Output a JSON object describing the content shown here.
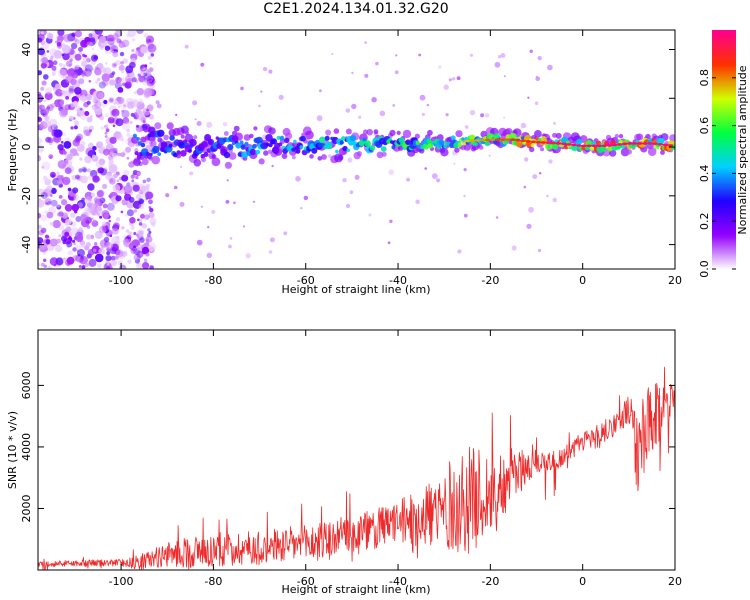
{
  "title": "C2E1.2024.134.01.32.G20",
  "chart_data": [
    {
      "type": "heatmap",
      "xlabel": "Height of straight line (km)",
      "ylabel": "Frequency (Hz)",
      "xlim": [
        -118,
        20
      ],
      "ylim": [
        -50,
        48
      ],
      "xticks": [
        -100,
        -80,
        -60,
        -40,
        -20,
        0,
        20
      ],
      "yticks": [
        -40,
        -20,
        0,
        20,
        40
      ],
      "colorbar": {
        "label": "Normalized spectral amplitude",
        "range": [
          0.0,
          1.0
        ],
        "ticks": [
          0.0,
          0.2,
          0.4,
          0.6,
          0.8
        ],
        "colormap": [
          "#ffffff",
          "#9400ff",
          "#2200ff",
          "#00d0ff",
          "#00ff40",
          "#d0ff00",
          "#ff3000",
          "#ff0090"
        ]
      },
      "ridge_center_hz": [
        [
          -96,
          1.5
        ],
        [
          -90,
          1.2
        ],
        [
          -85,
          0.5
        ],
        [
          -80,
          0.0
        ],
        [
          -70,
          0.5
        ],
        [
          -60,
          1.0
        ],
        [
          -50,
          1.0
        ],
        [
          -40,
          1.2
        ],
        [
          -30,
          2.0
        ],
        [
          -20,
          3.0
        ],
        [
          -15,
          3.0
        ],
        [
          -10,
          2.0
        ],
        [
          -5,
          1.5
        ],
        [
          0,
          0.5
        ],
        [
          5,
          0.5
        ],
        [
          10,
          1.5
        ],
        [
          15,
          1.5
        ],
        [
          20,
          0.5
        ]
      ],
      "ridge_peak_amplitude": [
        [
          -96,
          0.35
        ],
        [
          -80,
          0.35
        ],
        [
          -60,
          0.45
        ],
        [
          -40,
          0.55
        ],
        [
          -25,
          0.65
        ],
        [
          -15,
          0.75
        ],
        [
          -5,
          0.85
        ],
        [
          5,
          0.9
        ],
        [
          15,
          0.85
        ],
        [
          20,
          0.8
        ]
      ],
      "noise_region_x": [
        -118,
        -96
      ]
    },
    {
      "type": "line",
      "xlabel": "Height of straight line (km)",
      "ylabel": "SNR (10 * v/v)",
      "xlim": [
        -118,
        20
      ],
      "ylim": [
        0,
        7800
      ],
      "xticks": [
        -100,
        -80,
        -60,
        -40,
        -20,
        0,
        20
      ],
      "yticks": [
        2000,
        4000,
        6000
      ],
      "series": [
        {
          "color": "#ee2a2a",
          "envelope_min": [
            [
              -118,
              0
            ],
            [
              -95,
              80
            ],
            [
              -80,
              120
            ],
            [
              -60,
              200
            ],
            [
              -40,
              300
            ],
            [
              -20,
              600
            ],
            [
              -10,
              1500
            ],
            [
              0,
              3800
            ],
            [
              5,
              4000
            ],
            [
              10,
              2500
            ],
            [
              15,
              2000
            ],
            [
              20,
              4500
            ]
          ],
          "envelope_max": [
            [
              -118,
              400
            ],
            [
              -100,
              500
            ],
            [
              -95,
              900
            ],
            [
              -85,
              1800
            ],
            [
              -60,
              2200
            ],
            [
              -40,
              3000
            ],
            [
              -25,
              6200
            ],
            [
              -20,
              5600
            ],
            [
              -10,
              4400
            ],
            [
              -5,
              4300
            ],
            [
              0,
              4900
            ],
            [
              8,
              5700
            ],
            [
              14,
              7800
            ],
            [
              20,
              6800
            ]
          ],
          "typical": [
            [
              -118,
              200
            ],
            [
              -96,
              250
            ],
            [
              -90,
              500
            ],
            [
              -80,
              650
            ],
            [
              -60,
              850
            ],
            [
              -50,
              1150
            ],
            [
              -40,
              1550
            ],
            [
              -30,
              2000
            ],
            [
              -20,
              2500
            ],
            [
              -15,
              3100
            ],
            [
              -10,
              3500
            ],
            [
              -5,
              3600
            ],
            [
              0,
              4200
            ],
            [
              5,
              4500
            ],
            [
              10,
              5200
            ],
            [
              12,
              3800
            ],
            [
              15,
              4700
            ],
            [
              20,
              5800
            ]
          ]
        }
      ]
    }
  ]
}
